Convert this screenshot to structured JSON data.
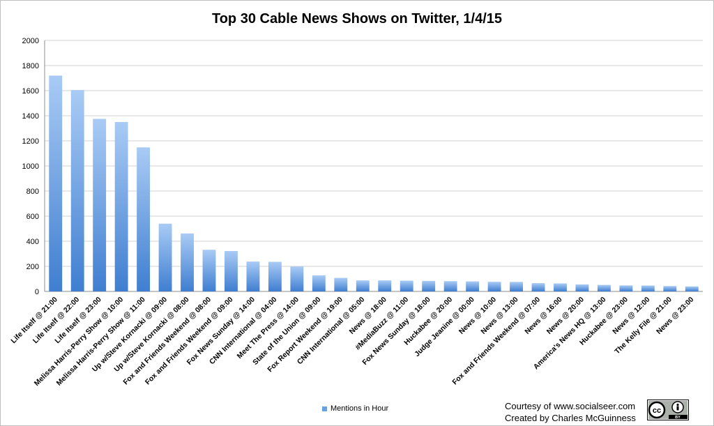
{
  "chart_data": {
    "type": "bar",
    "title": "Top 30 Cable News Shows on Twitter, 1/4/15",
    "xlabel": "",
    "ylabel": "",
    "ylim": [
      0,
      2000
    ],
    "yticks": [
      0,
      200,
      400,
      600,
      800,
      1000,
      1200,
      1400,
      1600,
      1800,
      2000
    ],
    "grid": true,
    "legend_position": "bottom",
    "categories": [
      "Life Itself @ 21:00",
      "Life Itself @ 22:00",
      "Life Itself @ 23:00",
      "Melissa Harris-Perry Show @ 10:00",
      "Melissa Harris-Perry Show @ 11:00",
      "Up w/Steve Kornacki @ 09:00",
      "Up w/Steve Kornacki @ 08:00",
      "Fox and Friends Weekend @ 08:00",
      "Fox and Friends Weekend @ 09:00",
      "Fox News Sunday @ 14:00",
      "CNN International @ 04:00",
      "Meet The Press @ 14:00",
      "State of the Union @ 09:00",
      "Fox Report Weekend @ 19:00",
      "CNN International @ 05:00",
      "News @ 18:00",
      "#MediaBuzz @ 11:00",
      "Fox News Sunday @ 18:00",
      "Huckabee @ 20:00",
      "Judge Jeanine @ 00:00",
      "News @ 10:00",
      "News @ 13:00",
      "Fox and Friends Weekend @ 07:00",
      "News @ 16:00",
      "News @ 20:00",
      "America's News HQ @ 13:00",
      "Huckabee @ 23:00",
      "News @ 12:00",
      "The Kelly File @ 21:00",
      "News @ 23:00"
    ],
    "series": [
      {
        "name": "Mentions in Hour",
        "color": "#6a9fe0",
        "values": [
          1720,
          1605,
          1375,
          1350,
          1148,
          540,
          462,
          332,
          322,
          238,
          236,
          198,
          128,
          108,
          88,
          88,
          86,
          84,
          82,
          80,
          77,
          76,
          66,
          64,
          56,
          52,
          48,
          47,
          43,
          40
        ]
      }
    ]
  },
  "credits": {
    "line1": "Courtesy of www.socialseer.com",
    "line2": "Created by Charles McGuinness"
  },
  "license_badge": {
    "cc": "cc",
    "by": "BY",
    "attribution_icon": "person-icon"
  }
}
